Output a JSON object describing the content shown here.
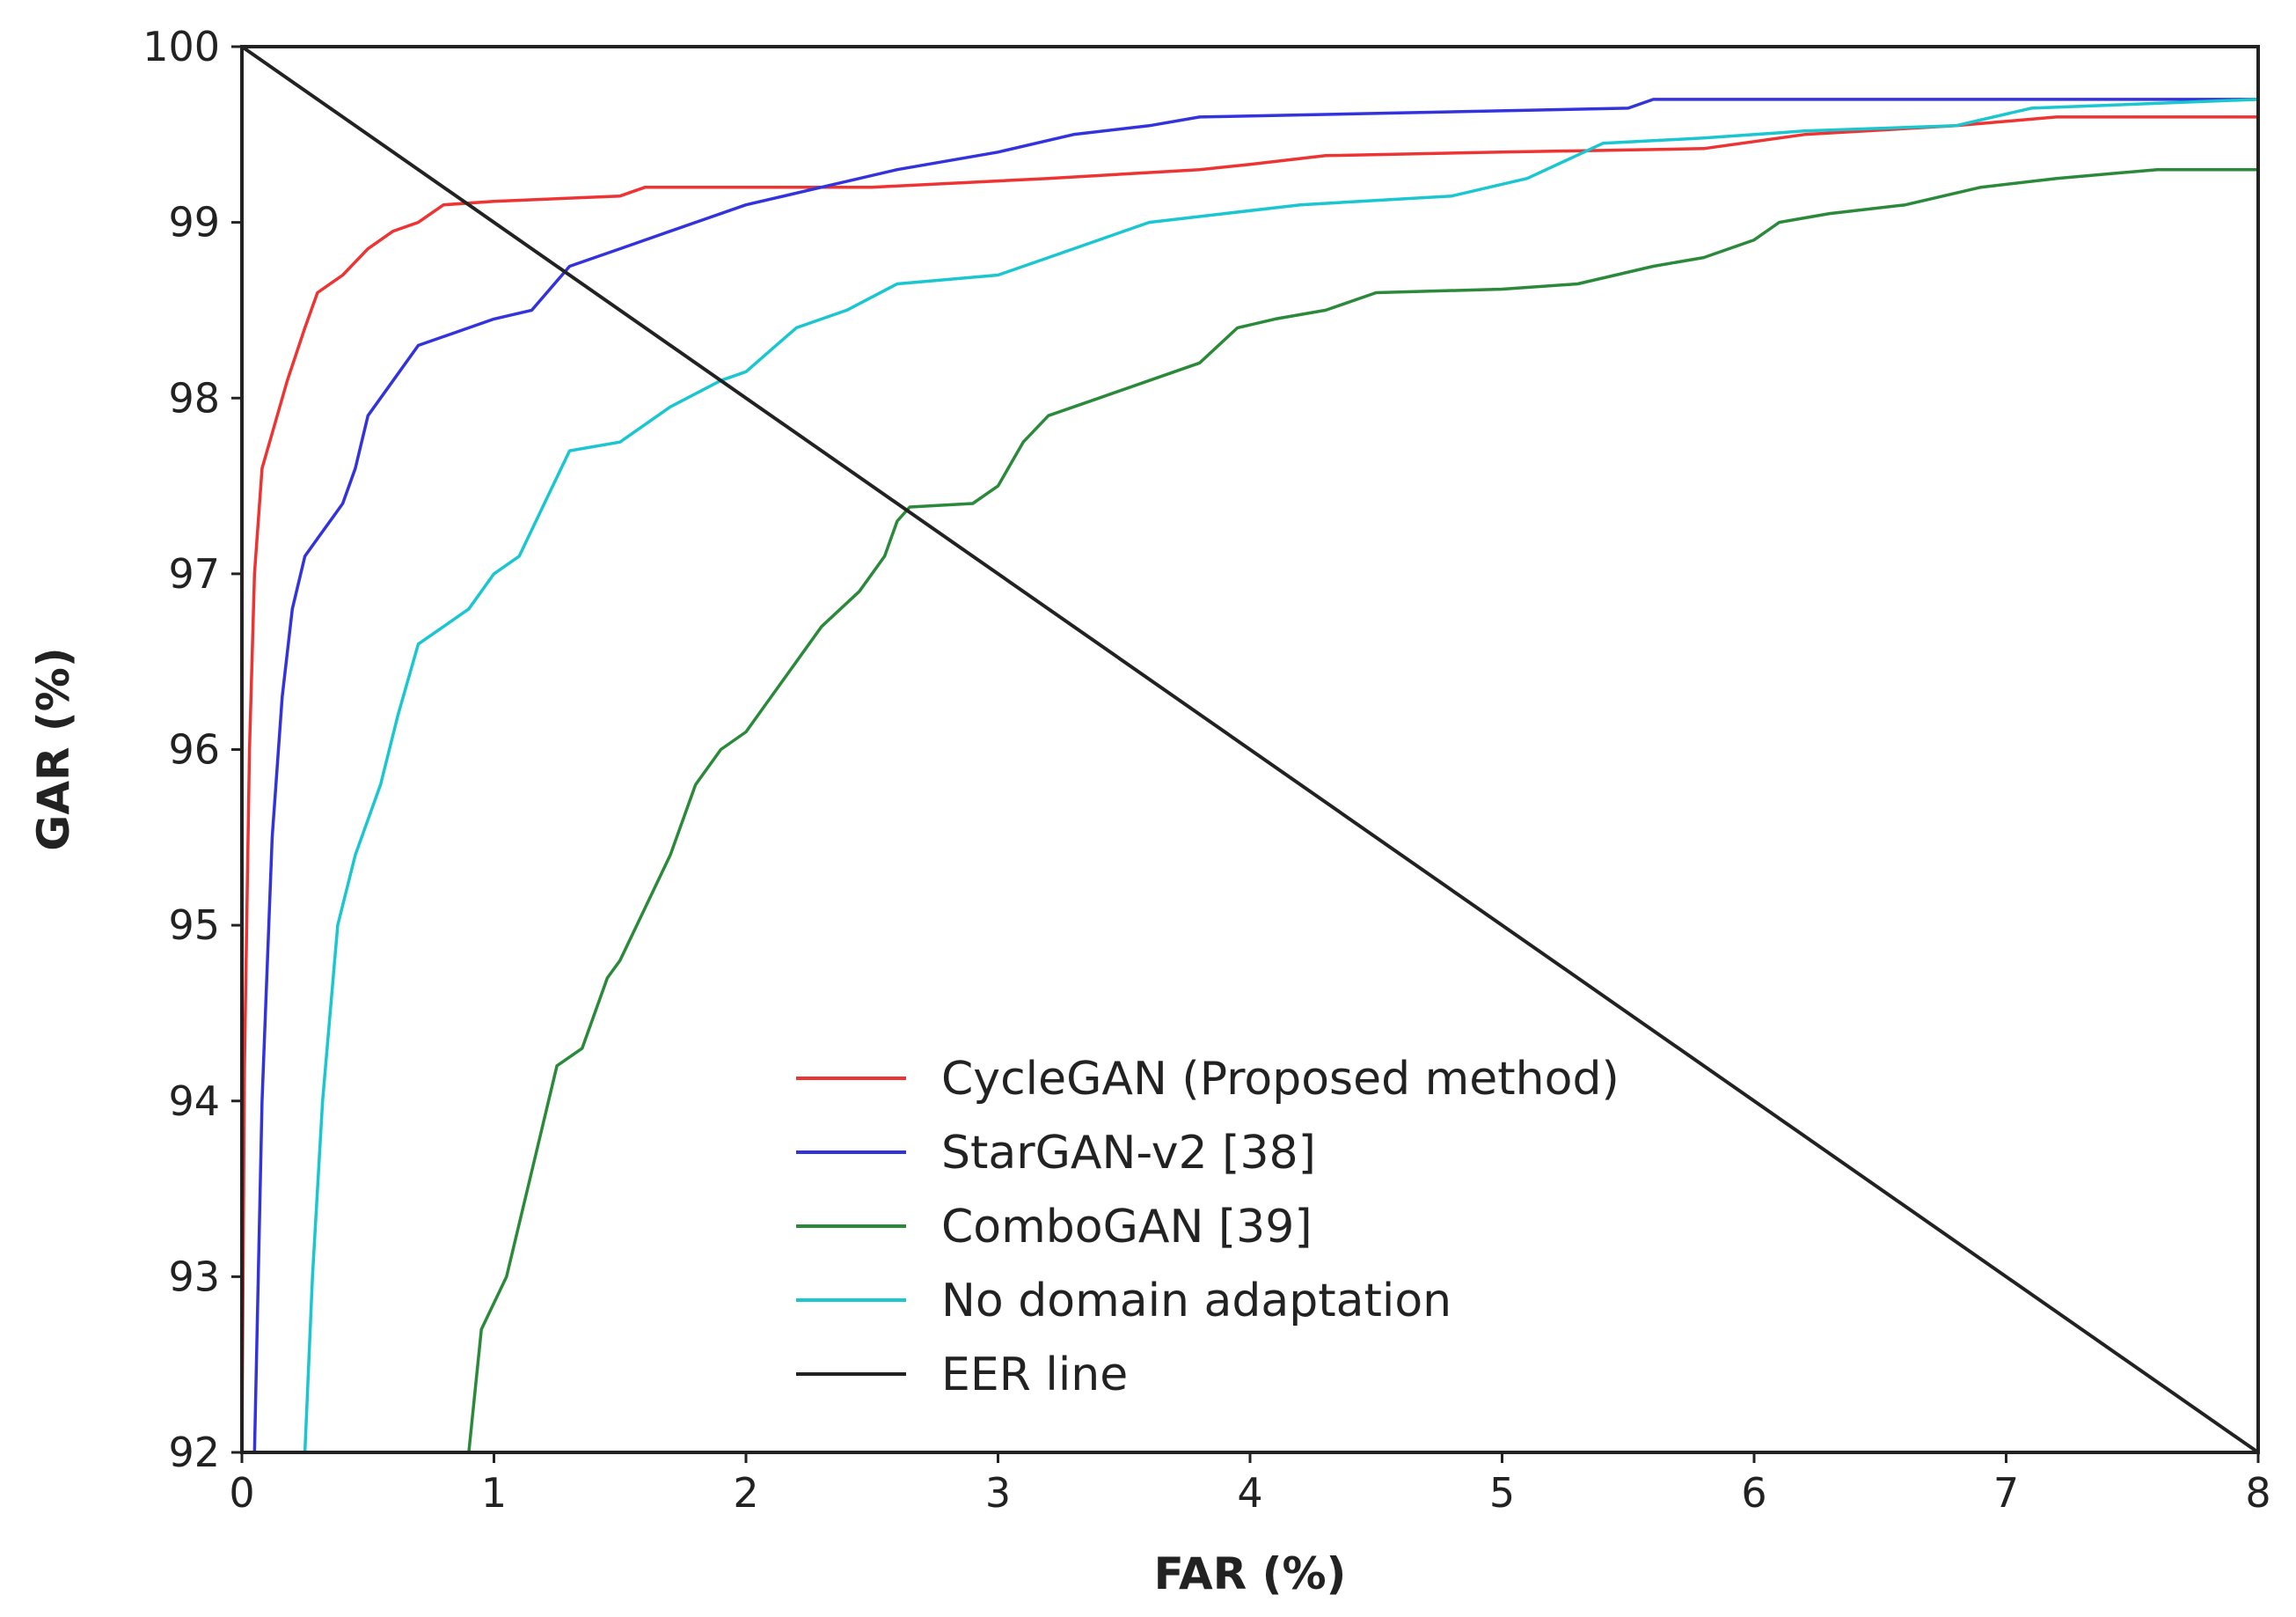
{
  "chart_data": {
    "type": "line",
    "title": "",
    "xlabel": "FAR (%)",
    "ylabel": "GAR (%)",
    "xlim": [
      0,
      8
    ],
    "ylim": [
      92,
      100
    ],
    "x_ticks": [
      "0",
      "1",
      "2",
      "3",
      "4",
      "5",
      "6",
      "7",
      "8"
    ],
    "y_ticks": [
      "92",
      "93",
      "94",
      "95",
      "96",
      "97",
      "98",
      "99",
      "100"
    ],
    "grid": false,
    "legend_position": "lower-center",
    "series": [
      {
        "name": "CycleGAN (Proposed method)",
        "color": "#ee3333",
        "points": [
          [
            0.0,
            92.0
          ],
          [
            0.01,
            94.2
          ],
          [
            0.03,
            96.0
          ],
          [
            0.05,
            97.0
          ],
          [
            0.08,
            97.6
          ],
          [
            0.12,
            97.8
          ],
          [
            0.18,
            98.1
          ],
          [
            0.25,
            98.4
          ],
          [
            0.3,
            98.6
          ],
          [
            0.4,
            98.7
          ],
          [
            0.5,
            98.85
          ],
          [
            0.6,
            98.95
          ],
          [
            0.7,
            99.0
          ],
          [
            0.8,
            99.1
          ],
          [
            1.0,
            99.12
          ],
          [
            1.5,
            99.15
          ],
          [
            1.6,
            99.2
          ],
          [
            2.5,
            99.2
          ],
          [
            3.2,
            99.25
          ],
          [
            3.8,
            99.3
          ],
          [
            4.0,
            99.33
          ],
          [
            4.3,
            99.38
          ],
          [
            5.0,
            99.4
          ],
          [
            5.8,
            99.42
          ],
          [
            6.2,
            99.5
          ],
          [
            6.8,
            99.55
          ],
          [
            7.2,
            99.6
          ],
          [
            8.0,
            99.6
          ]
        ]
      },
      {
        "name": "StarGAN-v2 [38]",
        "color": "#3333dd",
        "points": [
          [
            0.05,
            92.0
          ],
          [
            0.08,
            94.0
          ],
          [
            0.12,
            95.5
          ],
          [
            0.16,
            96.3
          ],
          [
            0.2,
            96.8
          ],
          [
            0.25,
            97.1
          ],
          [
            0.3,
            97.2
          ],
          [
            0.4,
            97.4
          ],
          [
            0.45,
            97.6
          ],
          [
            0.5,
            97.9
          ],
          [
            0.6,
            98.1
          ],
          [
            0.7,
            98.3
          ],
          [
            0.8,
            98.35
          ],
          [
            0.9,
            98.4
          ],
          [
            1.0,
            98.45
          ],
          [
            1.15,
            98.5
          ],
          [
            1.3,
            98.75
          ],
          [
            1.5,
            98.85
          ],
          [
            1.6,
            98.9
          ],
          [
            1.8,
            99.0
          ],
          [
            2.0,
            99.1
          ],
          [
            2.3,
            99.2
          ],
          [
            2.6,
            99.3
          ],
          [
            3.0,
            99.4
          ],
          [
            3.3,
            99.5
          ],
          [
            3.6,
            99.55
          ],
          [
            3.8,
            99.6
          ],
          [
            5.5,
            99.65
          ],
          [
            5.6,
            99.7
          ],
          [
            8.0,
            99.7
          ]
        ]
      },
      {
        "name": "ComboGAN [39]",
        "color": "#2a8a3a",
        "points": [
          [
            0.9,
            92.0
          ],
          [
            0.95,
            92.7
          ],
          [
            1.05,
            93.0
          ],
          [
            1.15,
            93.6
          ],
          [
            1.25,
            94.2
          ],
          [
            1.35,
            94.3
          ],
          [
            1.45,
            94.7
          ],
          [
            1.5,
            94.8
          ],
          [
            1.6,
            95.1
          ],
          [
            1.7,
            95.4
          ],
          [
            1.8,
            95.8
          ],
          [
            1.9,
            96.0
          ],
          [
            2.0,
            96.1
          ],
          [
            2.1,
            96.3
          ],
          [
            2.2,
            96.5
          ],
          [
            2.3,
            96.7
          ],
          [
            2.45,
            96.9
          ],
          [
            2.55,
            97.1
          ],
          [
            2.6,
            97.3
          ],
          [
            2.65,
            97.38
          ],
          [
            2.9,
            97.4
          ],
          [
            3.0,
            97.5
          ],
          [
            3.1,
            97.75
          ],
          [
            3.2,
            97.9
          ],
          [
            3.4,
            98.0
          ],
          [
            3.6,
            98.1
          ],
          [
            3.8,
            98.2
          ],
          [
            3.95,
            98.4
          ],
          [
            4.1,
            98.45
          ],
          [
            4.3,
            98.5
          ],
          [
            4.5,
            98.6
          ],
          [
            5.0,
            98.62
          ],
          [
            5.3,
            98.65
          ],
          [
            5.6,
            98.75
          ],
          [
            5.8,
            98.8
          ],
          [
            6.0,
            98.9
          ],
          [
            6.1,
            99.0
          ],
          [
            6.3,
            99.05
          ],
          [
            6.6,
            99.1
          ],
          [
            6.9,
            99.2
          ],
          [
            7.2,
            99.25
          ],
          [
            7.6,
            99.3
          ],
          [
            8.0,
            99.3
          ]
        ]
      },
      {
        "name": "No domain adaptation",
        "color": "#1ac6d0",
        "points": [
          [
            0.25,
            92.0
          ],
          [
            0.28,
            93.0
          ],
          [
            0.32,
            94.0
          ],
          [
            0.38,
            95.0
          ],
          [
            0.45,
            95.4
          ],
          [
            0.55,
            95.8
          ],
          [
            0.62,
            96.2
          ],
          [
            0.7,
            96.6
          ],
          [
            0.8,
            96.7
          ],
          [
            0.9,
            96.8
          ],
          [
            1.0,
            97.0
          ],
          [
            1.1,
            97.1
          ],
          [
            1.2,
            97.4
          ],
          [
            1.3,
            97.7
          ],
          [
            1.5,
            97.75
          ],
          [
            1.7,
            97.95
          ],
          [
            1.9,
            98.1
          ],
          [
            2.0,
            98.15
          ],
          [
            2.2,
            98.4
          ],
          [
            2.4,
            98.5
          ],
          [
            2.6,
            98.65
          ],
          [
            3.0,
            98.7
          ],
          [
            3.2,
            98.8
          ],
          [
            3.4,
            98.9
          ],
          [
            3.6,
            99.0
          ],
          [
            3.9,
            99.05
          ],
          [
            4.2,
            99.1
          ],
          [
            4.8,
            99.15
          ],
          [
            5.1,
            99.25
          ],
          [
            5.4,
            99.45
          ],
          [
            5.8,
            99.48
          ],
          [
            6.2,
            99.52
          ],
          [
            6.8,
            99.55
          ],
          [
            7.1,
            99.65
          ],
          [
            8.0,
            99.7
          ]
        ]
      },
      {
        "name": "EER line",
        "color": "#222222",
        "points": [
          [
            0,
            100
          ],
          [
            8,
            92
          ]
        ]
      }
    ]
  }
}
